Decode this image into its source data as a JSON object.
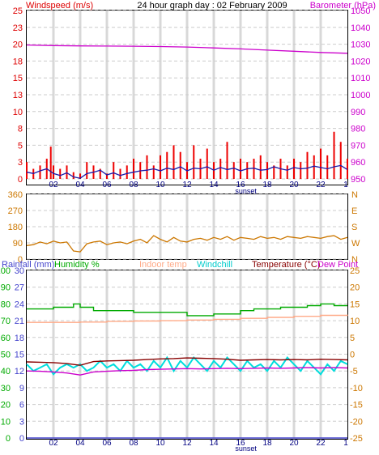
{
  "chart_data": [
    {
      "type": "line",
      "title": "24 hour graph day : 02 February 2009",
      "left_axis_label": "Windspeed (m/s)",
      "right_axis_label": "Barometer (hPa)",
      "left_ticks": [
        "0",
        "3",
        "5",
        "8",
        "10",
        "13",
        "15",
        "18",
        "20",
        "23",
        "25"
      ],
      "right_ticks": [
        "950",
        "960",
        "970",
        "980",
        "990",
        "1000",
        "1010",
        "1020",
        "1030",
        "1040",
        "1050"
      ],
      "ylim_left": [
        0,
        25
      ],
      "ylim_right": [
        950,
        1050
      ],
      "x_ticks": [
        "02",
        "04",
        "06",
        "08",
        "10",
        "12",
        "14",
        "16",
        "18",
        "20",
        "22"
      ],
      "x_end_tick": "1",
      "x_event_label": "sunset",
      "x_event_hour": 16.4,
      "colors": {
        "gust": "#ee0000",
        "wind": "#1a1aaa",
        "barometer": "#cc00cc"
      },
      "series": [
        {
          "key": "barometer",
          "axis": "right",
          "x": [
            0,
            2,
            4,
            6,
            8,
            10,
            12,
            14,
            16,
            18,
            20,
            22,
            24
          ],
          "values": [
            1029.5,
            1029.2,
            1029.0,
            1028.9,
            1028.8,
            1028.6,
            1028.3,
            1027.8,
            1027.2,
            1026.5,
            1025.8,
            1025.1,
            1024.6
          ]
        },
        {
          "key": "gust",
          "axis": "left",
          "x": [
            0,
            0.5,
            1,
            1.5,
            1.8,
            2,
            2.5,
            3,
            3.5,
            4,
            4.5,
            5,
            5.5,
            6,
            6.5,
            7,
            7.5,
            8,
            8.5,
            9,
            9.5,
            10,
            10.5,
            11,
            11.5,
            12,
            12.5,
            13,
            13.5,
            14,
            14.5,
            15,
            15.5,
            16,
            16.5,
            17,
            17.5,
            18,
            18.5,
            19,
            19.5,
            20,
            20.5,
            21,
            21.5,
            22,
            22.5,
            23,
            23.5,
            24
          ],
          "values": [
            2.5,
            1.5,
            2.0,
            3.0,
            4.8,
            2.0,
            1.5,
            2.0,
            1.0,
            0.8,
            2.5,
            2.0,
            1.5,
            0.8,
            2.5,
            1.5,
            2.0,
            3.0,
            2.5,
            3.5,
            2.0,
            3.5,
            4.0,
            5.0,
            4.0,
            2.5,
            5.0,
            3.0,
            4.5,
            2.5,
            3.0,
            5.5,
            2.5,
            3.0,
            2.5,
            3.0,
            3.5,
            2.5,
            2.0,
            3.0,
            2.0,
            3.0,
            2.5,
            4.0,
            3.5,
            4.5,
            3.5,
            7.0,
            5.5,
            3.0
          ]
        },
        {
          "key": "wind",
          "axis": "left",
          "x": [
            0,
            0.5,
            1,
            1.5,
            2,
            2.5,
            3,
            3.5,
            4,
            4.5,
            5,
            5.5,
            6,
            6.5,
            7,
            7.5,
            8,
            8.5,
            9,
            9.5,
            10,
            10.5,
            11,
            11.5,
            12,
            12.5,
            13,
            13.5,
            14,
            14.5,
            15,
            15.5,
            16,
            16.5,
            17,
            17.5,
            18,
            18.5,
            19,
            19.5,
            20,
            20.5,
            21,
            21.5,
            22,
            22.5,
            23,
            23.5,
            24
          ],
          "values": [
            1.0,
            0.8,
            1.2,
            1.5,
            0.8,
            0.5,
            0.9,
            0.3,
            0.1,
            0.8,
            1.0,
            1.3,
            0.6,
            0.9,
            0.5,
            0.8,
            1.0,
            1.2,
            1.3,
            1.5,
            1.2,
            1.6,
            1.4,
            1.8,
            1.2,
            1.6,
            1.5,
            1.8,
            1.3,
            1.7,
            1.4,
            1.6,
            1.2,
            1.5,
            1.6,
            1.3,
            1.4,
            1.8,
            1.5,
            1.3,
            1.7,
            1.5,
            1.6,
            1.9,
            1.7,
            1.5,
            1.8,
            2.0,
            1.4
          ]
        }
      ]
    },
    {
      "type": "line",
      "left_ticks": [
        "0",
        "90",
        "180",
        "270",
        "360"
      ],
      "right_ticks": [
        "N",
        "W",
        "S",
        "E",
        "N"
      ],
      "ylim": [
        0,
        360
      ],
      "colors": {
        "direction": "#cc7700"
      },
      "series": [
        {
          "key": "direction",
          "x": [
            0,
            0.5,
            1,
            1.5,
            2,
            2.5,
            3,
            3.5,
            4,
            4.5,
            5,
            5.5,
            6,
            6.5,
            7,
            7.5,
            8,
            8.5,
            9,
            9.5,
            10,
            10.5,
            11,
            11.5,
            12,
            12.5,
            13,
            13.5,
            14,
            14.5,
            15,
            15.5,
            16,
            16.5,
            17,
            17.5,
            18,
            18.5,
            19,
            19.5,
            20,
            20.5,
            21,
            21.5,
            22,
            22.5,
            23,
            23.5,
            24
          ],
          "values": [
            75,
            80,
            95,
            85,
            100,
            90,
            95,
            45,
            40,
            85,
            95,
            100,
            80,
            90,
            95,
            85,
            100,
            110,
            90,
            130,
            110,
            95,
            120,
            100,
            95,
            110,
            115,
            105,
            120,
            110,
            125,
            105,
            120,
            115,
            110,
            125,
            115,
            120,
            110,
            125,
            120,
            115,
            125,
            120,
            115,
            125,
            130,
            110,
            120
          ]
        }
      ]
    },
    {
      "type": "line",
      "legend": [
        "Rainfall (mm)",
        "Humidity %",
        "Indoor temp",
        "Windchill",
        "Temperature (°C)",
        "Dew Point"
      ],
      "left_ticks": [
        "0",
        "10",
        "20",
        "30",
        "40",
        "50",
        "60",
        "70",
        "80",
        "90",
        "100"
      ],
      "rain_ticks": [
        "0",
        "3",
        "6",
        "9",
        "12",
        "15",
        "18",
        "21",
        "24",
        "27",
        "30"
      ],
      "right_ticks": [
        "-25",
        "-20",
        "-15",
        "-10",
        "-5",
        "0",
        "5",
        "10",
        "15",
        "20",
        "25"
      ],
      "ylim_humidity": [
        0,
        100
      ],
      "ylim_rain": [
        0,
        30
      ],
      "ylim_temp": [
        -25,
        25
      ],
      "x_ticks": [
        "02",
        "04",
        "06",
        "08",
        "10",
        "12",
        "14",
        "16",
        "18",
        "20",
        "22"
      ],
      "x_end_tick": "1",
      "x_event_label": "sunset",
      "x_event_hour": 16.4,
      "colors": {
        "rainfall": "#4444cc",
        "humidity": "#00aa00",
        "indoor": "#ffaa88",
        "windchill": "#00dddd",
        "temperature": "#880000",
        "dewpoint": "#cc00cc"
      },
      "series": [
        {
          "key": "humidity",
          "axis": "humidity",
          "x": [
            0,
            1,
            2,
            3,
            3.5,
            4,
            5,
            6,
            7,
            8,
            9,
            10,
            11,
            12,
            13,
            14,
            15,
            16,
            17,
            18,
            19,
            20,
            21,
            22,
            23,
            24
          ],
          "values": [
            77,
            77,
            78,
            78,
            80,
            78,
            76,
            76,
            76,
            75,
            75,
            75,
            75,
            73,
            73,
            74,
            74,
            76,
            77,
            77,
            78,
            78,
            79,
            80,
            79,
            79
          ]
        },
        {
          "key": "indoor",
          "axis": "temp",
          "x": [
            0,
            2,
            4,
            6,
            8,
            10,
            12,
            14,
            16,
            18,
            20,
            22,
            24
          ],
          "values": [
            9.5,
            9.5,
            9.6,
            9.8,
            9.9,
            10.0,
            10.2,
            10.4,
            10.7,
            11.0,
            11.3,
            11.6,
            11.8
          ]
        },
        {
          "key": "windchill",
          "axis": "temp",
          "x": [
            0,
            0.5,
            1,
            1.5,
            2,
            2.5,
            3,
            3.5,
            4,
            4.5,
            5,
            5.5,
            6,
            6.5,
            7,
            7.5,
            8,
            8.5,
            9,
            9.5,
            10,
            10.5,
            11,
            11.5,
            12,
            12.5,
            13,
            13.5,
            14,
            14.5,
            15,
            15.5,
            16,
            16.5,
            17,
            17.5,
            18,
            18.5,
            19,
            19.5,
            20,
            20.5,
            21,
            21.5,
            22,
            22.5,
            23,
            23.5,
            24
          ],
          "values": [
            -3,
            -5,
            -4,
            -3,
            -6,
            -4,
            -3,
            -4,
            -3,
            -5,
            -4,
            -2,
            -4,
            -3,
            -5,
            -2,
            -4,
            -3,
            -5,
            -2,
            -4,
            -1,
            -5,
            -2,
            -4,
            -1,
            -3,
            -5,
            -2,
            -4,
            -1,
            -3,
            -5,
            -2,
            -4,
            -3,
            -5,
            -2,
            -4,
            -1,
            -3,
            -5,
            -2,
            -4,
            -6,
            -3,
            -5,
            -2,
            -3
          ]
        },
        {
          "key": "temperature",
          "axis": "temp",
          "x": [
            0,
            1,
            2,
            3,
            4,
            5,
            6,
            7,
            8,
            9,
            10,
            11,
            12,
            13,
            14,
            15,
            16,
            17,
            18,
            19,
            20,
            21,
            22,
            23,
            24
          ],
          "values": [
            -2.3,
            -2.4,
            -2.5,
            -2.8,
            -3.3,
            -2.2,
            -2.0,
            -1.9,
            -1.8,
            -1.6,
            -1.4,
            -1.3,
            -1.1,
            -1.2,
            -1.3,
            -1.5,
            -1.8,
            -1.7,
            -1.6,
            -1.7,
            -1.6,
            -1.7,
            -1.5,
            -1.6,
            -1.7
          ]
        },
        {
          "key": "dewpoint",
          "axis": "temp",
          "x": [
            0,
            1,
            2,
            3,
            4,
            5,
            6,
            7,
            8,
            9,
            10,
            11,
            12,
            13,
            14,
            15,
            16,
            17,
            18,
            19,
            20,
            21,
            22,
            23,
            24
          ],
          "values": [
            -5.0,
            -5.1,
            -5.3,
            -5.6,
            -6.2,
            -5.3,
            -5.1,
            -4.9,
            -4.8,
            -4.6,
            -4.5,
            -4.4,
            -4.3,
            -4.4,
            -4.3,
            -4.2,
            -4.3,
            -4.2,
            -4.1,
            -4.2,
            -4.1,
            -4.0,
            -4.1,
            -4.0,
            -4.1
          ]
        },
        {
          "key": "rainfall",
          "axis": "rain",
          "x": [
            0,
            24
          ],
          "values": [
            0,
            0
          ]
        }
      ]
    }
  ]
}
